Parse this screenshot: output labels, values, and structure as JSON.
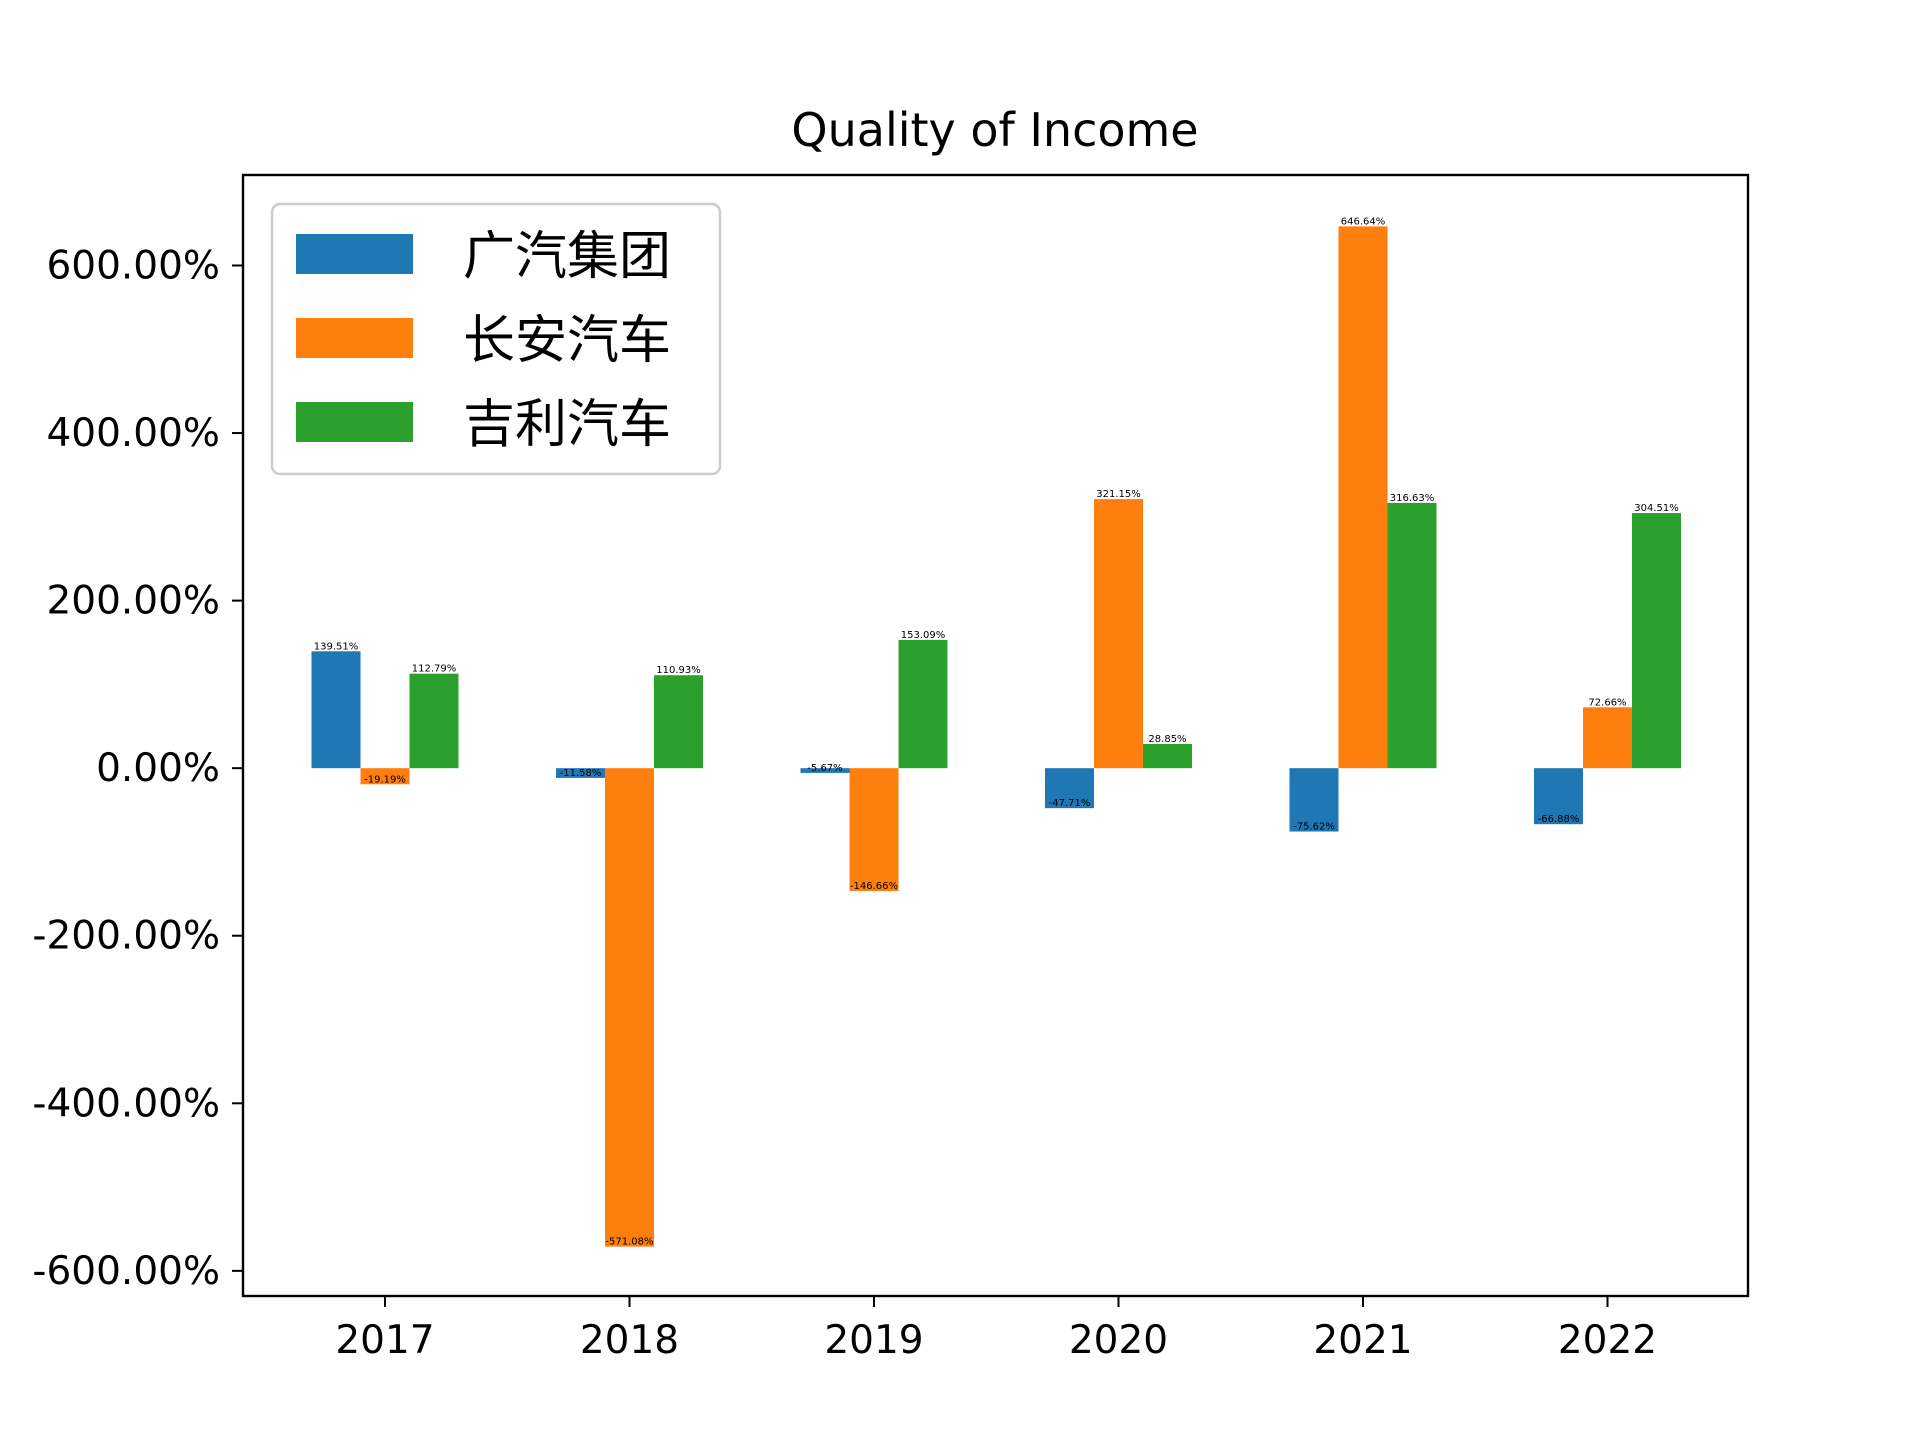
{
  "chart_data": {
    "type": "bar",
    "title": "Quality of Income",
    "xlabel": "",
    "ylabel": "",
    "categories": [
      "2017",
      "2018",
      "2019",
      "2020",
      "2021",
      "2022"
    ],
    "y_tick_values": [
      -600,
      -400,
      -200,
      0,
      200,
      400,
      600
    ],
    "y_tick_labels": [
      "-600.00%",
      "-400.00%",
      "-200.00%",
      "0.00%",
      "200.00%",
      "400.00%",
      "600.00%"
    ],
    "ylim": [
      -630,
      708
    ],
    "unit": "%",
    "grid": false,
    "legend_position": "top-left",
    "series": [
      {
        "name": "广汽集团",
        "color": "#1f77b4",
        "values": [
          139.51,
          -11.58,
          -5.67,
          -47.71,
          -75.62,
          -66.88
        ],
        "labels": [
          "139.51%",
          "-11.58%",
          "-5.67%",
          "-47.71%",
          "-75.62%",
          "-66.88%"
        ]
      },
      {
        "name": "长安汽车",
        "color": "#ff7f0e",
        "values": [
          -19.19,
          -571.08,
          -146.66,
          321.15,
          646.64,
          72.66
        ],
        "labels": [
          "-19.19%",
          "-571.08%",
          "-146.66%",
          "321.15%",
          "646.64%",
          "72.66%"
        ]
      },
      {
        "name": "吉利汽车",
        "color": "#2ca02c",
        "values": [
          112.79,
          110.93,
          153.09,
          28.85,
          316.63,
          304.51
        ],
        "labels": [
          "112.79%",
          "110.93%",
          "153.09%",
          "28.85%",
          "316.63%",
          "304.51%"
        ]
      }
    ]
  }
}
